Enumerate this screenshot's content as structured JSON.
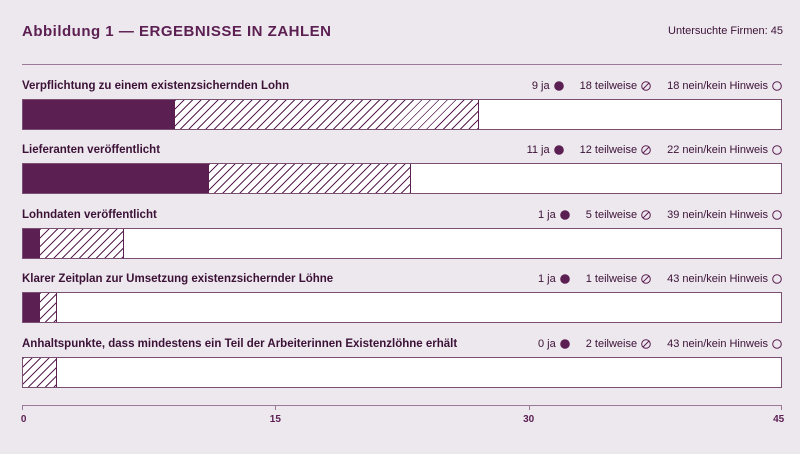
{
  "header": {
    "title": "Abbildung 1 — ERGEBNISSE IN ZAHLEN",
    "count_label": "Untersuchte Firmen:",
    "count_value": "45"
  },
  "colors": {
    "ja": "#5b1f52",
    "background": "#ede7ee",
    "bar_bg": "#ffffff"
  },
  "chart_data": {
    "type": "bar",
    "orientation": "horizontal",
    "stacked": true,
    "xlim": [
      0,
      45
    ],
    "xticks": [
      0,
      15,
      30,
      45
    ],
    "series": [
      {
        "name": "ja",
        "values": [
          9,
          11,
          1,
          1,
          0
        ]
      },
      {
        "name": "teilweise",
        "values": [
          18,
          12,
          5,
          1,
          2
        ]
      },
      {
        "name": "nein/kein Hinweis",
        "values": [
          18,
          22,
          39,
          43,
          43
        ]
      }
    ],
    "categories": [
      "Verpflichtung zu einem existenzsichernden Lohn",
      "Lieferanten veröffentlicht",
      "Lohndaten veröffentlicht",
      "Klarer Zeitplan zur Umsetzung existenzsichernder Löhne",
      "Anhaltspunkte, dass mindestens ein Teil der Arbeiterinnen Existenzlöhne erhält"
    ],
    "rows": [
      {
        "label": "Verpflichtung zu einem existenzsichernden Lohn",
        "ja": "9 ja",
        "teil": "18 teilweise",
        "nein": "18 nein/kein Hinweis"
      },
      {
        "label": "Lieferanten veröffentlicht",
        "ja": "11 ja",
        "teil": "12 teilweise",
        "nein": "22 nein/kein Hinweis"
      },
      {
        "label": "Lohndaten veröffentlicht",
        "ja": "1 ja",
        "teil": "5 teilweise",
        "nein": "39 nein/kein Hinweis"
      },
      {
        "label": "Klarer Zeitplan zur Umsetzung existenzsichernder Löhne",
        "ja": "1 ja",
        "teil": "1 teilweise",
        "nein": "43 nein/kein Hinweis"
      },
      {
        "label": "Anhaltspunkte, dass mindestens ein Teil der Arbeiterinnen Existenzlöhne erhält",
        "ja": "0 ja",
        "teil": "2 teilweise",
        "nein": "43 nein/kein Hinweis"
      }
    ],
    "legend_icons": {
      "ja": "filled-circle-icon",
      "teil": "hatched-circle-icon",
      "nein": "empty-circle-icon"
    }
  }
}
